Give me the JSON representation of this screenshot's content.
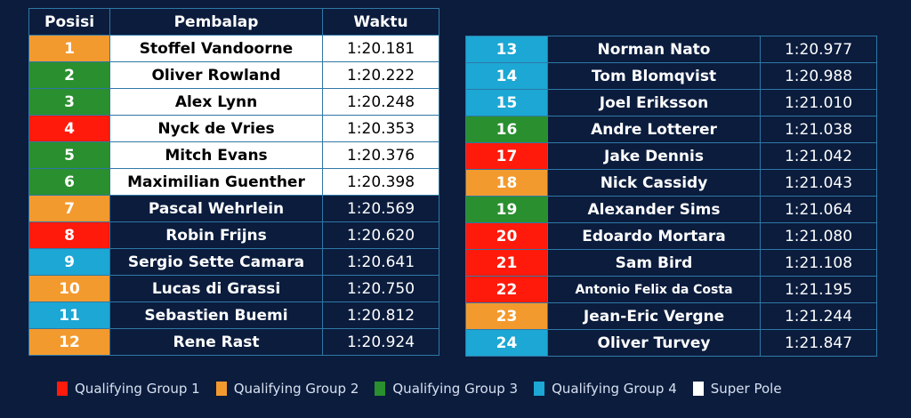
{
  "headers": {
    "position": "Posisi",
    "driver": "Pembalap",
    "time": "Waktu"
  },
  "colors": {
    "background": "#0b1c3d",
    "group1": "#ff1a0c",
    "group2": "#f39a2f",
    "group3": "#2a8f2f",
    "group4": "#1ca7d4",
    "super_pole": "#ffffff"
  },
  "left_rows": [
    {
      "pos": "1",
      "driver": "Stoffel Vandoorne",
      "time": "1:20.181",
      "group": "g2",
      "super_pole": true
    },
    {
      "pos": "2",
      "driver": "Oliver Rowland",
      "time": "1:20.222",
      "group": "g3",
      "super_pole": true
    },
    {
      "pos": "3",
      "driver": "Alex Lynn",
      "time": "1:20.248",
      "group": "g3",
      "super_pole": true
    },
    {
      "pos": "4",
      "driver": "Nyck de Vries",
      "time": "1:20.353",
      "group": "g1",
      "super_pole": true
    },
    {
      "pos": "5",
      "driver": "Mitch Evans",
      "time": "1:20.376",
      "group": "g3",
      "super_pole": true
    },
    {
      "pos": "6",
      "driver": "Maximilian Guenther",
      "time": "1:20.398",
      "group": "g3",
      "super_pole": true
    },
    {
      "pos": "7",
      "driver": "Pascal Wehrlein",
      "time": "1:20.569",
      "group": "g2",
      "super_pole": false
    },
    {
      "pos": "8",
      "driver": "Robin Frijns",
      "time": "1:20.620",
      "group": "g1",
      "super_pole": false
    },
    {
      "pos": "9",
      "driver": "Sergio Sette Camara",
      "time": "1:20.641",
      "group": "g4",
      "super_pole": false
    },
    {
      "pos": "10",
      "driver": "Lucas di Grassi",
      "time": "1:20.750",
      "group": "g2",
      "super_pole": false
    },
    {
      "pos": "11",
      "driver": "Sebastien Buemi",
      "time": "1:20.812",
      "group": "g4",
      "super_pole": false
    },
    {
      "pos": "12",
      "driver": "Rene Rast",
      "time": "1:20.924",
      "group": "g2",
      "super_pole": false
    }
  ],
  "right_rows": [
    {
      "pos": "13",
      "driver": "Norman Nato",
      "time": "1:20.977",
      "group": "g4",
      "super_pole": false
    },
    {
      "pos": "14",
      "driver": "Tom Blomqvist",
      "time": "1:20.988",
      "group": "g4",
      "super_pole": false
    },
    {
      "pos": "15",
      "driver": "Joel Eriksson",
      "time": "1:21.010",
      "group": "g4",
      "super_pole": false
    },
    {
      "pos": "16",
      "driver": "Andre Lotterer",
      "time": "1:21.038",
      "group": "g3",
      "super_pole": false
    },
    {
      "pos": "17",
      "driver": "Jake Dennis",
      "time": "1:21.042",
      "group": "g1",
      "super_pole": false
    },
    {
      "pos": "18",
      "driver": "Nick Cassidy",
      "time": "1:21.043",
      "group": "g2",
      "super_pole": false
    },
    {
      "pos": "19",
      "driver": "Alexander Sims",
      "time": "1:21.064",
      "group": "g3",
      "super_pole": false
    },
    {
      "pos": "20",
      "driver": "Edoardo Mortara",
      "time": "1:21.080",
      "group": "g1",
      "super_pole": false
    },
    {
      "pos": "21",
      "driver": "Sam Bird",
      "time": "1:21.108",
      "group": "g1",
      "super_pole": false
    },
    {
      "pos": "22",
      "driver": "Antonio Felix da Costa",
      "time": "1:21.195",
      "group": "g1",
      "super_pole": false
    },
    {
      "pos": "23",
      "driver": "Jean-Eric Vergne",
      "time": "1:21.244",
      "group": "g2",
      "super_pole": false
    },
    {
      "pos": "24",
      "driver": "Oliver Turvey",
      "time": "1:21.847",
      "group": "g4",
      "super_pole": false
    }
  ],
  "legend": {
    "group1": "Qualifying Group 1",
    "group2": "Qualifying Group 2",
    "group3": "Qualifying Group 3",
    "group4": "Qualifying Group 4",
    "super_pole": "Super Pole"
  }
}
